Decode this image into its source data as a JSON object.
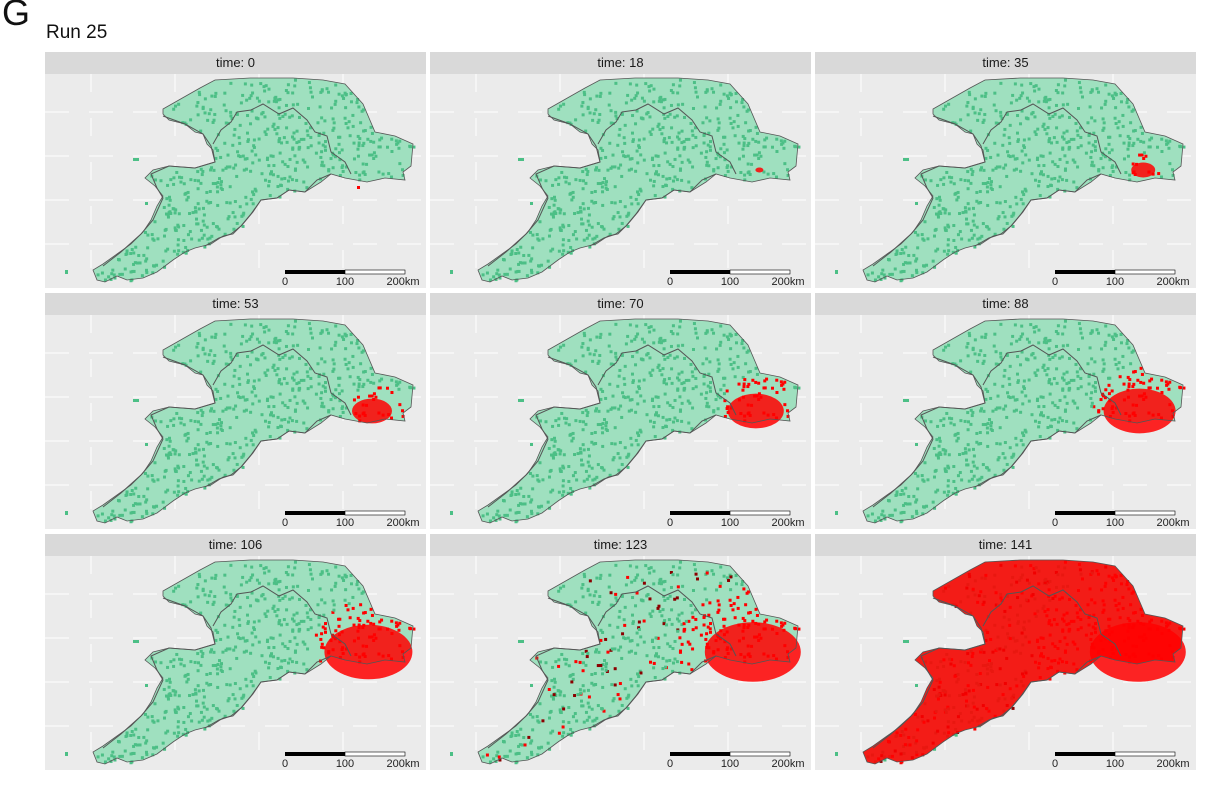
{
  "panel_letter": "G",
  "run_title": "Run 25",
  "colors": {
    "land": "#9fe0bf",
    "land_dots": "#4cbf86",
    "infected": "#ff0000",
    "infected_dark": "#8b0000",
    "coast": "#555555",
    "panel_bg": "#ebebeb",
    "strip_bg": "#d9d9d9"
  },
  "scale_bar": {
    "labels": [
      "0",
      "100",
      "200km"
    ]
  },
  "facets": [
    {
      "label": "time: 0",
      "time": 0,
      "spread": 0.01
    },
    {
      "label": "time: 18",
      "time": 18,
      "spread": 0.05
    },
    {
      "label": "time: 35",
      "time": 35,
      "spread": 0.15
    },
    {
      "label": "time: 53",
      "time": 53,
      "spread": 0.25
    },
    {
      "label": "time: 70",
      "time": 70,
      "spread": 0.35
    },
    {
      "label": "time: 88",
      "time": 88,
      "spread": 0.45
    },
    {
      "label": "time: 106",
      "time": 106,
      "spread": 0.55
    },
    {
      "label": "time: 123",
      "time": 123,
      "spread": 0.7
    },
    {
      "label": "time: 141",
      "time": 141,
      "spread": 0.95
    }
  ]
}
